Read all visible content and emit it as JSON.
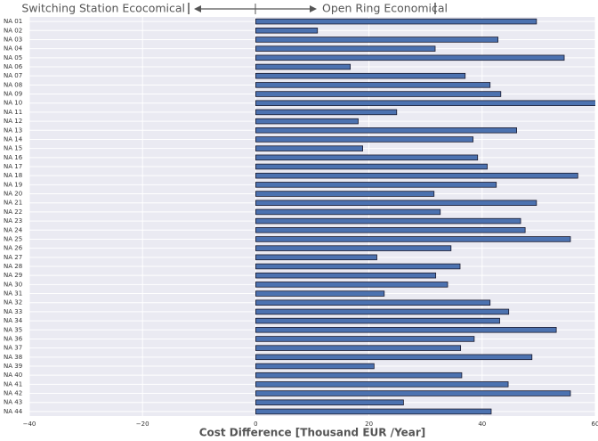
{
  "chart_data": {
    "type": "barh",
    "annotations": [
      "Switching Station Ecocomical",
      "Open Ring Economical"
    ],
    "xlabel": "Cost Difference [Thousand EUR /Year]",
    "categories": [
      "NA 01",
      "NA 02",
      "NA 03",
      "NA 04",
      "NA 05",
      "NA 06",
      "NA 07",
      "NA 08",
      "NA 09",
      "NA 10",
      "NA 11",
      "NA 12",
      "NA 13",
      "NA 14",
      "NA 15",
      "NA 16",
      "NA 17",
      "NA 18",
      "NA 19",
      "NA 20",
      "NA 21",
      "NA 22",
      "NA 23",
      "NA 24",
      "NA 25",
      "NA 26",
      "NA 27",
      "NA 28",
      "NA 29",
      "NA 30",
      "NA 31",
      "NA 32",
      "NA 33",
      "NA 34",
      "NA 35",
      "NA 36",
      "NA 37",
      "NA 38",
      "NA 39",
      "NA 40",
      "NA 41",
      "NA 42",
      "NA 43",
      "NA 44"
    ],
    "values": [
      49.6,
      10.9,
      42.8,
      31.7,
      54.5,
      16.7,
      37.0,
      41.4,
      43.3,
      60.5,
      24.9,
      18.1,
      46.1,
      38.4,
      18.9,
      39.2,
      40.9,
      56.9,
      42.5,
      31.5,
      49.6,
      32.6,
      46.8,
      47.6,
      55.6,
      34.5,
      21.4,
      36.1,
      31.8,
      33.9,
      22.7,
      41.4,
      44.7,
      43.1,
      53.1,
      38.6,
      36.2,
      48.8,
      20.9,
      36.4,
      44.6,
      55.6,
      26.1,
      41.6
    ],
    "color": "#4c72b0",
    "xlim": [
      -40,
      60
    ],
    "xticks": [
      {
        "value": -40,
        "label": "−40"
      },
      {
        "value": -20,
        "label": "−20"
      },
      0,
      20,
      40,
      60
    ],
    "grid": true
  }
}
